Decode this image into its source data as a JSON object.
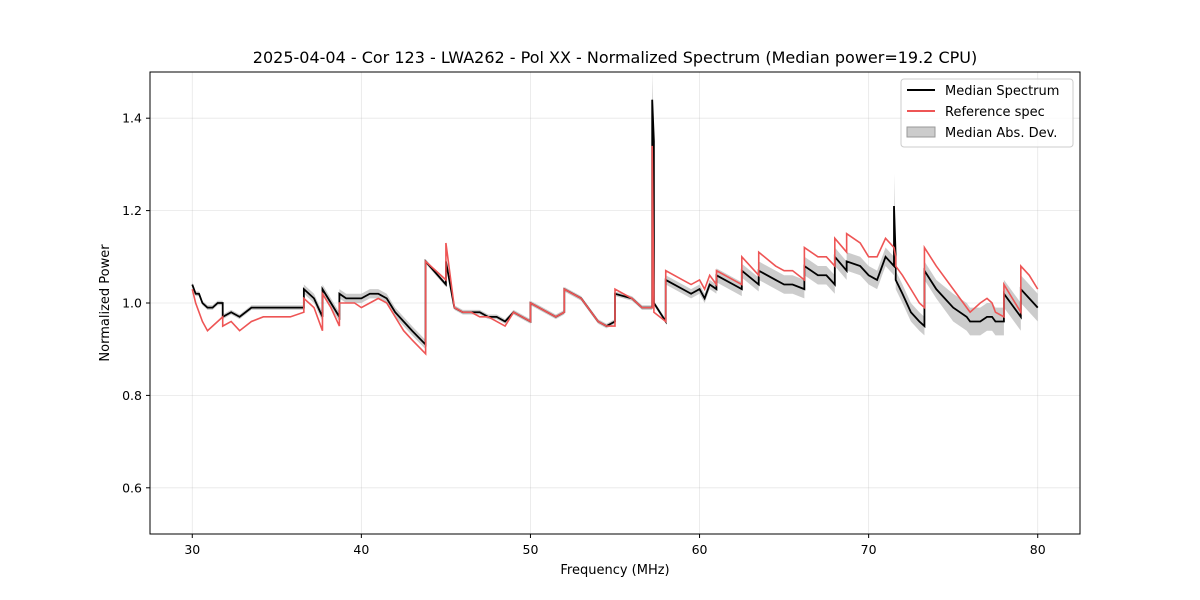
{
  "chart_data": {
    "type": "line",
    "title": "2025-04-04 - Cor 123 - LWA262 - Pol XX - Normalized Spectrum (Median power=19.2 CPU)",
    "xlabel": "Frequency (MHz)",
    "ylabel": "Normalized Power",
    "xlim": [
      27.5,
      82.5
    ],
    "ylim": [
      0.5,
      1.5
    ],
    "xticks": [
      30,
      40,
      50,
      60,
      70,
      80
    ],
    "xtick_labels": [
      "30",
      "40",
      "50",
      "60",
      "70",
      "80"
    ],
    "yticks": [
      0.6,
      0.8,
      1.0,
      1.2,
      1.4
    ],
    "ytick_labels": [
      "0.6",
      "0.8",
      "1.0",
      "1.2",
      "1.4"
    ],
    "grid": true,
    "legend_position": "top-right",
    "series": [
      {
        "name": "Median Spectrum",
        "color": "#000000",
        "x": [
          30.0,
          30.2,
          30.4,
          30.6,
          30.9,
          31.2,
          31.5,
          31.8,
          31.8,
          32.3,
          32.8,
          33.5,
          34.2,
          35.0,
          35.8,
          36.6,
          36.6,
          37.2,
          37.7,
          37.7,
          38.2,
          38.7,
          38.7,
          39.1,
          39.6,
          40.0,
          40.5,
          41.0,
          41.5,
          42.0,
          42.5,
          43.0,
          43.8,
          43.8,
          45.0,
          45.0,
          45.5,
          46.0,
          46.5,
          47.0,
          47.5,
          48.0,
          48.5,
          49.0,
          49.5,
          50.0,
          50.0,
          50.5,
          51.0,
          51.5,
          52.0,
          52.0,
          53.0,
          54.0,
          54.5,
          55.0,
          55.0,
          56.0,
          56.3,
          56.6,
          57.2,
          57.2,
          57.3,
          57.3,
          58.0,
          58.0,
          59.0,
          59.5,
          60.0,
          60.3,
          60.6,
          61.0,
          61.0,
          62.0,
          62.5,
          62.5,
          63.5,
          63.5,
          64.5,
          65.0,
          65.5,
          66.2,
          66.2,
          67.0,
          67.5,
          68.0,
          68.0,
          68.7,
          68.7,
          69.5,
          70.0,
          70.5,
          71.0,
          71.5,
          71.5,
          71.6,
          71.6,
          72.0,
          72.5,
          73.0,
          73.3,
          73.3,
          74.0,
          75.0,
          75.8,
          76.0,
          76.6,
          77.0,
          77.3,
          77.5,
          78.0,
          78.0,
          79.0,
          79.0,
          79.5,
          80.0
        ],
        "values": [
          1.04,
          1.02,
          1.02,
          1.0,
          0.99,
          0.99,
          1.0,
          1.0,
          0.97,
          0.98,
          0.97,
          0.99,
          0.99,
          0.99,
          0.99,
          0.99,
          1.03,
          1.01,
          0.97,
          1.03,
          1.0,
          0.97,
          1.02,
          1.01,
          1.01,
          1.01,
          1.02,
          1.02,
          1.01,
          0.98,
          0.96,
          0.94,
          0.91,
          1.09,
          1.04,
          1.09,
          0.99,
          0.98,
          0.98,
          0.98,
          0.97,
          0.97,
          0.96,
          0.98,
          0.97,
          0.96,
          1.0,
          0.99,
          0.98,
          0.97,
          0.98,
          1.03,
          1.01,
          0.96,
          0.95,
          0.96,
          1.02,
          1.01,
          1.0,
          0.99,
          0.99,
          1.44,
          1.35,
          1.0,
          0.96,
          1.05,
          1.03,
          1.02,
          1.03,
          1.01,
          1.04,
          1.03,
          1.06,
          1.04,
          1.03,
          1.07,
          1.04,
          1.07,
          1.05,
          1.04,
          1.04,
          1.03,
          1.08,
          1.06,
          1.06,
          1.04,
          1.1,
          1.07,
          1.09,
          1.08,
          1.06,
          1.05,
          1.1,
          1.08,
          1.21,
          1.1,
          1.05,
          1.02,
          0.98,
          0.96,
          0.95,
          1.07,
          1.03,
          0.99,
          0.97,
          0.96,
          0.96,
          0.97,
          0.97,
          0.96,
          0.96,
          1.02,
          0.97,
          1.03,
          1.01,
          0.99
        ]
      },
      {
        "name": "Reference spec",
        "color": "#ee5555",
        "x": [
          30.0,
          30.2,
          30.4,
          30.6,
          30.9,
          31.2,
          31.5,
          31.8,
          31.8,
          32.3,
          32.8,
          33.5,
          34.2,
          35.0,
          35.8,
          36.6,
          36.6,
          37.2,
          37.7,
          37.7,
          38.2,
          38.7,
          38.7,
          39.1,
          39.6,
          40.0,
          40.5,
          41.0,
          41.5,
          42.0,
          42.5,
          43.0,
          43.8,
          43.8,
          45.0,
          45.0,
          45.5,
          46.0,
          46.5,
          47.0,
          47.5,
          48.0,
          48.5,
          49.0,
          49.5,
          50.0,
          50.0,
          50.5,
          51.0,
          51.5,
          52.0,
          52.0,
          53.0,
          54.0,
          54.5,
          55.0,
          55.0,
          56.0,
          56.3,
          56.6,
          57.2,
          57.2,
          57.3,
          57.3,
          58.0,
          58.0,
          59.0,
          59.5,
          60.0,
          60.3,
          60.6,
          61.0,
          61.0,
          62.0,
          62.5,
          62.5,
          63.5,
          63.5,
          64.5,
          65.0,
          65.5,
          66.2,
          66.2,
          67.0,
          67.5,
          68.0,
          68.0,
          68.7,
          68.7,
          69.5,
          70.0,
          70.5,
          71.0,
          71.5,
          71.5,
          71.6,
          71.6,
          72.0,
          72.5,
          73.0,
          73.3,
          73.3,
          74.0,
          75.0,
          75.8,
          76.0,
          76.6,
          77.0,
          77.3,
          77.5,
          78.0,
          78.0,
          79.0,
          79.0,
          79.5,
          80.0
        ],
        "values": [
          1.03,
          1.0,
          0.98,
          0.96,
          0.94,
          0.95,
          0.96,
          0.97,
          0.95,
          0.96,
          0.94,
          0.96,
          0.97,
          0.97,
          0.97,
          0.98,
          1.01,
          0.99,
          0.94,
          1.02,
          0.99,
          0.95,
          1.0,
          1.0,
          1.0,
          0.99,
          1.0,
          1.01,
          1.0,
          0.97,
          0.94,
          0.92,
          0.89,
          1.09,
          1.05,
          1.13,
          0.99,
          0.98,
          0.98,
          0.97,
          0.97,
          0.96,
          0.95,
          0.98,
          0.97,
          0.96,
          1.0,
          0.99,
          0.98,
          0.97,
          0.98,
          1.03,
          1.01,
          0.96,
          0.95,
          0.95,
          1.03,
          1.01,
          1.0,
          0.99,
          0.99,
          1.34,
          1.0,
          0.98,
          0.96,
          1.07,
          1.05,
          1.04,
          1.05,
          1.03,
          1.06,
          1.04,
          1.07,
          1.05,
          1.04,
          1.1,
          1.06,
          1.11,
          1.08,
          1.07,
          1.07,
          1.05,
          1.12,
          1.1,
          1.1,
          1.08,
          1.14,
          1.11,
          1.15,
          1.13,
          1.1,
          1.1,
          1.14,
          1.12,
          1.12,
          1.1,
          1.08,
          1.06,
          1.03,
          1.0,
          0.99,
          1.12,
          1.08,
          1.03,
          0.99,
          0.98,
          1.0,
          1.01,
          1.0,
          0.98,
          0.97,
          1.04,
          0.98,
          1.08,
          1.06,
          1.03
        ]
      }
    ],
    "band": {
      "name": "Median Abs. Dev.",
      "color": "#bbbbbb",
      "x": [
        30.0,
        30.2,
        30.4,
        30.6,
        30.9,
        31.2,
        31.5,
        31.8,
        31.8,
        32.3,
        32.8,
        33.5,
        34.2,
        35.0,
        35.8,
        36.6,
        36.6,
        37.2,
        37.7,
        37.7,
        38.2,
        38.7,
        38.7,
        39.1,
        39.6,
        40.0,
        40.5,
        41.0,
        41.5,
        42.0,
        42.5,
        43.0,
        43.8,
        43.8,
        45.0,
        45.0,
        45.5,
        46.0,
        46.5,
        47.0,
        47.5,
        48.0,
        48.5,
        49.0,
        49.5,
        50.0,
        50.0,
        50.5,
        51.0,
        51.5,
        52.0,
        52.0,
        53.0,
        54.0,
        54.5,
        55.0,
        55.0,
        56.0,
        56.3,
        56.6,
        57.2,
        57.2,
        57.3,
        57.3,
        58.0,
        58.0,
        59.0,
        59.5,
        60.0,
        60.3,
        60.6,
        61.0,
        61.0,
        62.0,
        62.5,
        62.5,
        63.5,
        63.5,
        64.5,
        65.0,
        65.5,
        66.2,
        66.2,
        67.0,
        67.5,
        68.0,
        68.0,
        68.7,
        68.7,
        69.5,
        70.0,
        70.5,
        71.0,
        71.5,
        71.5,
        71.6,
        71.6,
        72.0,
        72.5,
        73.0,
        73.3,
        73.3,
        74.0,
        75.0,
        75.8,
        76.0,
        76.6,
        77.0,
        77.3,
        77.5,
        78.0,
        78.0,
        79.0,
        79.0,
        79.5,
        80.0
      ],
      "upper": [
        1.045,
        1.025,
        1.025,
        1.005,
        0.995,
        0.995,
        1.005,
        1.005,
        0.975,
        0.985,
        0.975,
        0.995,
        0.995,
        0.995,
        0.995,
        0.995,
        1.04,
        1.02,
        0.98,
        1.04,
        1.01,
        0.98,
        1.03,
        1.02,
        1.02,
        1.02,
        1.03,
        1.03,
        1.02,
        0.99,
        0.97,
        0.95,
        0.92,
        1.095,
        1.045,
        1.095,
        0.995,
        0.985,
        0.985,
        0.985,
        0.975,
        0.975,
        0.965,
        0.985,
        0.975,
        0.965,
        1.005,
        0.995,
        0.985,
        0.975,
        0.985,
        1.035,
        1.015,
        0.965,
        0.955,
        0.965,
        1.025,
        1.015,
        1.005,
        0.995,
        0.995,
        1.5,
        1.38,
        1.005,
        0.965,
        1.06,
        1.04,
        1.03,
        1.04,
        1.02,
        1.05,
        1.04,
        1.075,
        1.055,
        1.045,
        1.085,
        1.055,
        1.09,
        1.07,
        1.06,
        1.06,
        1.05,
        1.1,
        1.08,
        1.08,
        1.06,
        1.12,
        1.09,
        1.11,
        1.1,
        1.08,
        1.07,
        1.12,
        1.1,
        1.28,
        1.12,
        1.07,
        1.04,
        1.0,
        0.98,
        0.97,
        1.09,
        1.05,
        1.02,
        1.0,
        0.99,
        0.99,
        1.0,
        1.0,
        0.99,
        0.99,
        1.05,
        1.0,
        1.06,
        1.04,
        1.02
      ],
      "lower": [
        1.035,
        1.015,
        1.015,
        0.995,
        0.985,
        0.985,
        0.995,
        0.995,
        0.965,
        0.975,
        0.965,
        0.985,
        0.985,
        0.985,
        0.985,
        0.985,
        1.02,
        1.0,
        0.96,
        1.02,
        0.99,
        0.96,
        1.01,
        1.0,
        1.0,
        1.0,
        1.01,
        1.01,
        1.0,
        0.97,
        0.95,
        0.93,
        0.9,
        1.085,
        1.035,
        1.085,
        0.985,
        0.975,
        0.975,
        0.975,
        0.965,
        0.965,
        0.955,
        0.975,
        0.965,
        0.955,
        0.995,
        0.985,
        0.975,
        0.965,
        0.975,
        1.025,
        1.005,
        0.955,
        0.945,
        0.955,
        1.015,
        1.005,
        0.995,
        0.985,
        0.985,
        1.38,
        1.32,
        0.995,
        0.955,
        1.04,
        1.02,
        1.01,
        1.02,
        1.0,
        1.03,
        1.02,
        1.045,
        1.025,
        1.015,
        1.055,
        1.025,
        1.05,
        1.03,
        1.02,
        1.02,
        1.01,
        1.06,
        1.04,
        1.04,
        1.02,
        1.08,
        1.05,
        1.07,
        1.06,
        1.04,
        1.03,
        1.08,
        1.06,
        1.14,
        1.08,
        1.03,
        1.0,
        0.96,
        0.94,
        0.93,
        1.05,
        1.01,
        0.96,
        0.94,
        0.93,
        0.93,
        0.94,
        0.94,
        0.93,
        0.93,
        0.99,
        0.94,
        1.0,
        0.98,
        0.96
      ]
    }
  }
}
